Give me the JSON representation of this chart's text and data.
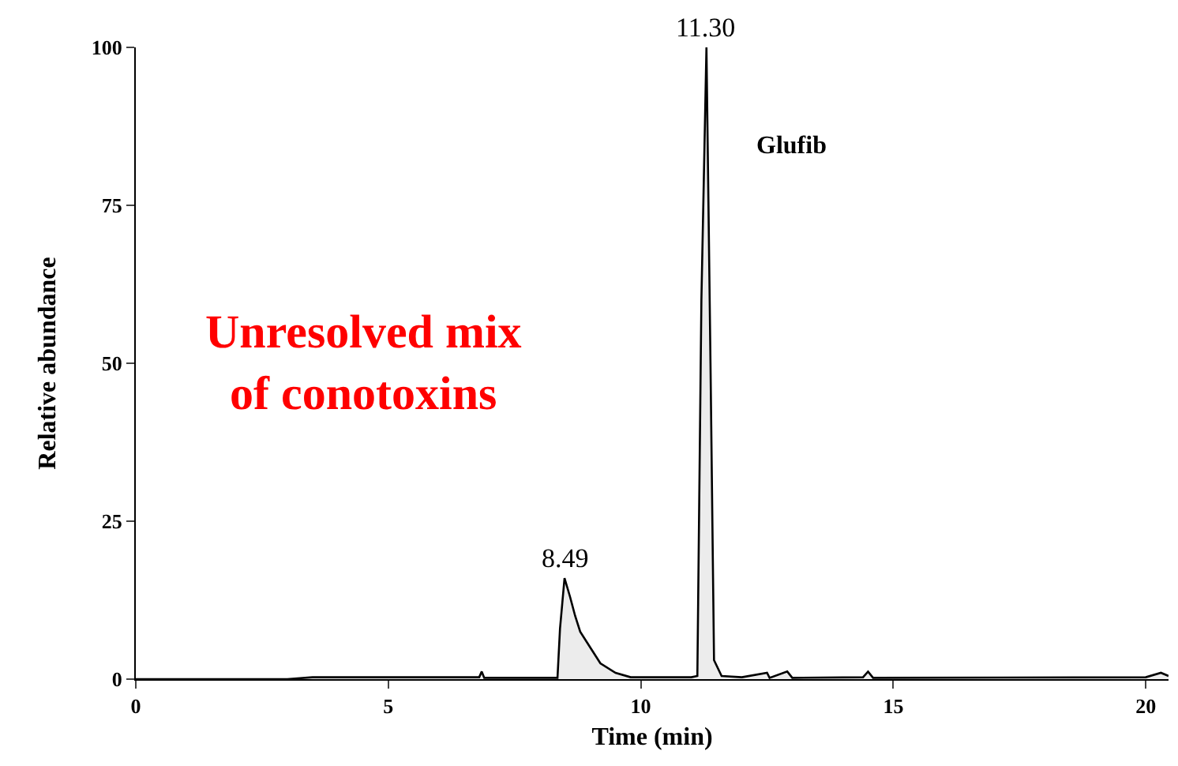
{
  "chart_data": {
    "type": "area",
    "xlabel": "Time (min)",
    "ylabel": "Relative abundance",
    "x": [
      0,
      3,
      3.5,
      5,
      6.8,
      6.85,
      6.9,
      8.35,
      8.4,
      8.49,
      8.6,
      8.7,
      8.8,
      9,
      9.2,
      9.5,
      9.8,
      10.5,
      11,
      11.12,
      11.2,
      11.3,
      11.38,
      11.45,
      11.6,
      12,
      12.5,
      12.55,
      12.9,
      13,
      14.4,
      14.5,
      14.6,
      20,
      20.3,
      20.45
    ],
    "series": [
      {
        "color": "#000000",
        "values": [
          0,
          0,
          0.3,
          0.3,
          0.3,
          1.2,
          0.2,
          0.2,
          8,
          16,
          13,
          10,
          7.5,
          5,
          2.5,
          1,
          0.3,
          0.3,
          0.3,
          0.5,
          60,
          100,
          50,
          3,
          0.5,
          0.3,
          1,
          0.2,
          1.2,
          0.2,
          0.3,
          1.2,
          0.2,
          0.3,
          1,
          0.5
        ]
      }
    ],
    "xlim": [
      0,
      20.45
    ],
    "xticks": [
      0,
      5,
      10,
      15,
      20
    ],
    "ylim": [
      0,
      100
    ],
    "yticks": [
      0,
      25,
      50,
      75,
      100
    ],
    "grid": false,
    "marker": "none",
    "line_style": "solid",
    "annotations": [
      {
        "text": "8.49",
        "x": 8.49,
        "y": 16
      },
      {
        "text": "11.30",
        "x": 11.3,
        "y": 100
      },
      "Glufib",
      "Unresolved mix\nof conotoxins"
    ]
  }
}
